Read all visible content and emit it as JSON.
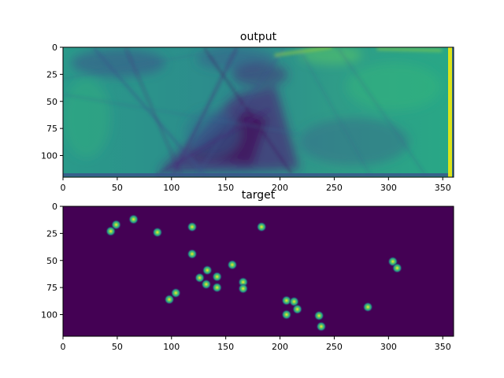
{
  "colors": {
    "viridis_dark": "#440154",
    "viridis_teal": "#21918c",
    "viridis_green": "#35b779",
    "viridis_yellow": "#fde725",
    "frame": "#000000"
  },
  "chart_data": [
    {
      "type": "heatmap",
      "title": "output",
      "colormap": "viridis",
      "xlim": [
        0,
        360
      ],
      "ylim": [
        120,
        0
      ],
      "xticks": [
        "0",
        "50",
        "100",
        "150",
        "200",
        "250",
        "300",
        "350"
      ],
      "yticks": [
        "0",
        "25",
        "50",
        "75",
        "100"
      ],
      "description_values": {
        "background_level": 0.55,
        "dark_streak_region": {
          "x_range": [
            85,
            215
          ],
          "y_range": [
            25,
            115
          ],
          "level": 0.15
        },
        "right_edge_band": {
          "x": 357,
          "level": 0.95
        }
      }
    },
    {
      "type": "heatmap",
      "title": "target",
      "colormap": "viridis",
      "xlim": [
        0,
        360
      ],
      "ylim": [
        120,
        0
      ],
      "xticks": [
        "0",
        "50",
        "100",
        "150",
        "200",
        "250",
        "300",
        "350"
      ],
      "yticks": [
        "0",
        "25",
        "50",
        "75",
        "100"
      ],
      "background_level": 0,
      "points": [
        {
          "x": 49,
          "y": 17
        },
        {
          "x": 44,
          "y": 23
        },
        {
          "x": 65,
          "y": 12
        },
        {
          "x": 87,
          "y": 24
        },
        {
          "x": 119,
          "y": 19
        },
        {
          "x": 183,
          "y": 19
        },
        {
          "x": 119,
          "y": 44
        },
        {
          "x": 156,
          "y": 54
        },
        {
          "x": 133,
          "y": 59
        },
        {
          "x": 126,
          "y": 66
        },
        {
          "x": 142,
          "y": 65
        },
        {
          "x": 132,
          "y": 72
        },
        {
          "x": 142,
          "y": 75
        },
        {
          "x": 166,
          "y": 70
        },
        {
          "x": 166,
          "y": 76
        },
        {
          "x": 104,
          "y": 80
        },
        {
          "x": 98,
          "y": 86
        },
        {
          "x": 206,
          "y": 87
        },
        {
          "x": 213,
          "y": 88
        },
        {
          "x": 216,
          "y": 95
        },
        {
          "x": 206,
          "y": 100
        },
        {
          "x": 236,
          "y": 101
        },
        {
          "x": 238,
          "y": 111
        },
        {
          "x": 281,
          "y": 93
        },
        {
          "x": 304,
          "y": 51
        },
        {
          "x": 308,
          "y": 57
        }
      ]
    }
  ]
}
